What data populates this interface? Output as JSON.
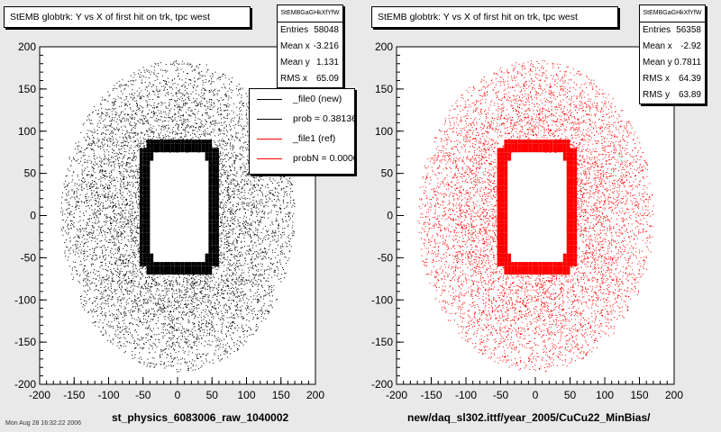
{
  "colors": {
    "ref": "#000000",
    "new": "#ff0000",
    "pad_bg": "#e9e9e9",
    "frame_bg": "#ffffff"
  },
  "footer_text": "Mon Aug 28 16:32:22 2006",
  "chart_data": [
    {
      "type": "scatter",
      "title": "StEMB globtrk: Y vs X of first hit on trk, tpc west",
      "xlabel": "st_physics_6083006_raw_1040002",
      "ylabel": "",
      "xlim": [
        -200,
        200
      ],
      "ylim": [
        -200,
        200
      ],
      "x_ticks": [
        -200,
        -150,
        -100,
        -50,
        0,
        50,
        100,
        150,
        200
      ],
      "y_ticks": [
        -200,
        -150,
        -100,
        -50,
        0,
        50,
        100,
        150,
        200
      ],
      "grid": false,
      "marker_color": "#000000",
      "ring": {
        "inner_x_half_width": 45,
        "inner_y_top": 75,
        "inner_y_bottom": -60,
        "band_width": 10
      },
      "distribution": {
        "outer_x": 170,
        "outer_y": 185
      },
      "stats": {
        "header": "StEMBGaGHkXfYfW",
        "rows": [
          {
            "label": "Entries",
            "value": "58048"
          },
          {
            "label": "Mean x",
            "value": "-3.216"
          },
          {
            "label": "Mean y",
            "value": "1.131"
          },
          {
            "label": "RMS x",
            "value": "65.09"
          }
        ]
      },
      "legend": [
        {
          "label": "_file0 (new)",
          "color": "#000000"
        },
        {
          "label": "prob = 0.381360",
          "color": "#000000"
        },
        {
          "label": "_file1 (ref)",
          "color": "#ff0000"
        },
        {
          "label": "probN = 0.000000",
          "color": "#ff0000"
        }
      ]
    },
    {
      "type": "scatter",
      "title": "StEMB globtrk: Y vs X of first hit on trk, tpc west",
      "xlabel": "new/daq_sl302.ittf/year_2005/CuCu22_MinBias/",
      "ylabel": "",
      "xlim": [
        -200,
        200
      ],
      "ylim": [
        -200,
        200
      ],
      "x_ticks": [
        -200,
        -150,
        -100,
        -50,
        0,
        50,
        100,
        150,
        200
      ],
      "y_ticks": [
        -200,
        -150,
        -100,
        -50,
        0,
        50,
        100,
        150,
        200
      ],
      "grid": false,
      "marker_color": "#ff0000",
      "ring": {
        "inner_x_half_width": 45,
        "inner_y_top": 75,
        "inner_y_bottom": -60,
        "band_width": 10
      },
      "distribution": {
        "outer_x": 170,
        "outer_y": 185
      },
      "stats": {
        "header": "StEMBGaGHkXfYfW",
        "rows": [
          {
            "label": "Entries",
            "value": "56358"
          },
          {
            "label": "Mean x",
            "value": "-2.92"
          },
          {
            "label": "Mean y",
            "value": "0.7811"
          },
          {
            "label": "RMS x",
            "value": "64.39"
          },
          {
            "label": "RMS y",
            "value": "63.89"
          }
        ]
      }
    }
  ]
}
